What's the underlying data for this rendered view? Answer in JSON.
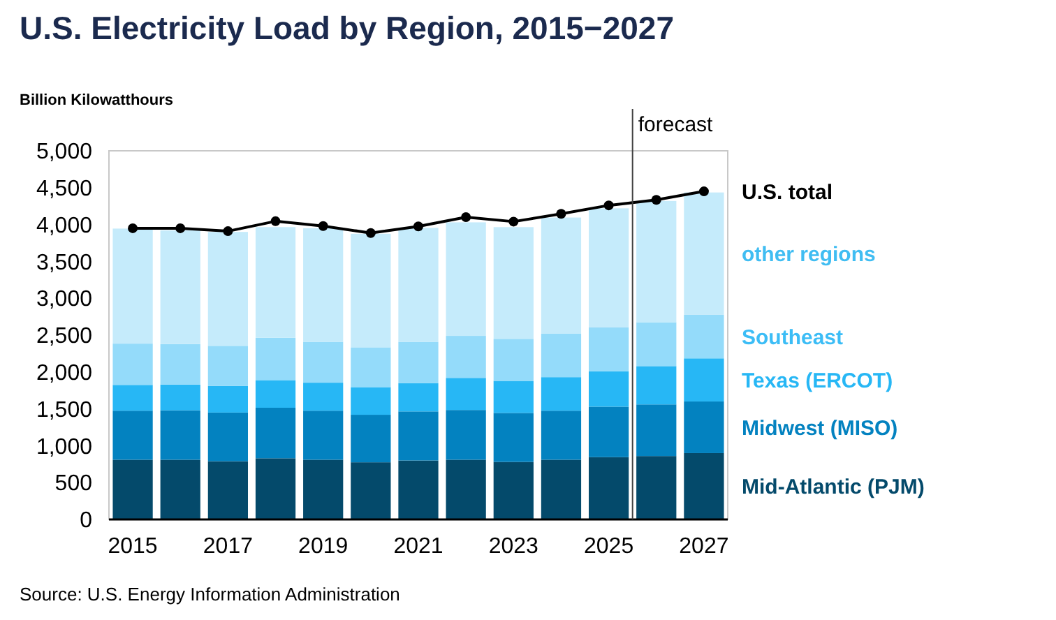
{
  "chart_data": {
    "type": "bar",
    "stacked": true,
    "title": "U.S. Electricity Load by Region, 2015−2027",
    "ylabel": "Billion Kilowatthours",
    "x": [
      2015,
      2016,
      2017,
      2018,
      2019,
      2020,
      2021,
      2022,
      2023,
      2024,
      2025,
      2026,
      2027
    ],
    "xlim": [
      2014.5,
      2027.5
    ],
    "xticks": [
      2015,
      2017,
      2019,
      2021,
      2023,
      2025,
      2027
    ],
    "ylim": [
      0,
      5000
    ],
    "yticks": [
      {
        "value": 0,
        "label": "0"
      },
      {
        "value": 500,
        "label": "500"
      },
      {
        "value": 1000,
        "label": "1,000"
      },
      {
        "value": 1500,
        "label": "1,500"
      },
      {
        "value": 2000,
        "label": "2,000"
      },
      {
        "value": 2500,
        "label": "2,500"
      },
      {
        "value": 3000,
        "label": "3,000"
      },
      {
        "value": 3500,
        "label": "3,500"
      },
      {
        "value": 4000,
        "label": "4,000"
      },
      {
        "value": 4500,
        "label": "4,500"
      },
      {
        "value": 5000,
        "label": "5,000"
      }
    ],
    "grid": false,
    "legend": "right",
    "series": [
      {
        "name": "Mid-Atlantic (PJM)",
        "color": "#044a6b",
        "values": [
          810,
          810,
          790,
          830,
          810,
          775,
          800,
          810,
          780,
          810,
          845,
          860,
          900
        ]
      },
      {
        "name": "Midwest (MISO)",
        "color": "#0382c0",
        "values": [
          665,
          670,
          660,
          685,
          665,
          645,
          665,
          675,
          665,
          665,
          685,
          700,
          700
        ]
      },
      {
        "name": "Texas (ERCOT)",
        "color": "#27b7f5",
        "values": [
          350,
          350,
          360,
          375,
          380,
          375,
          385,
          435,
          435,
          455,
          480,
          520,
          585
        ]
      },
      {
        "name": "Southeast",
        "color": "#94dbfa",
        "values": [
          560,
          550,
          545,
          575,
          555,
          540,
          560,
          570,
          570,
          590,
          595,
          595,
          590
        ]
      },
      {
        "name": "other regions",
        "color": "#c5ebfb",
        "values": [
          1560,
          1540,
          1545,
          1500,
          1540,
          1540,
          1545,
          1540,
          1515,
          1575,
          1615,
          1645,
          1660
        ]
      },
      {
        "name": "U.S. total",
        "type": "line",
        "color": "#000000",
        "marker": "circle",
        "line_style": "solid",
        "values": [
          3950,
          3950,
          3910,
          4045,
          3980,
          3885,
          3975,
          4100,
          4040,
          4145,
          4260,
          4335,
          4450
        ]
      }
    ],
    "ref_lines": [
      {
        "axis": "x",
        "value": 2025.5,
        "label": "forecast",
        "color": "#404040"
      }
    ],
    "annotations": [
      "Source: U.S. Energy Information Administration"
    ]
  }
}
